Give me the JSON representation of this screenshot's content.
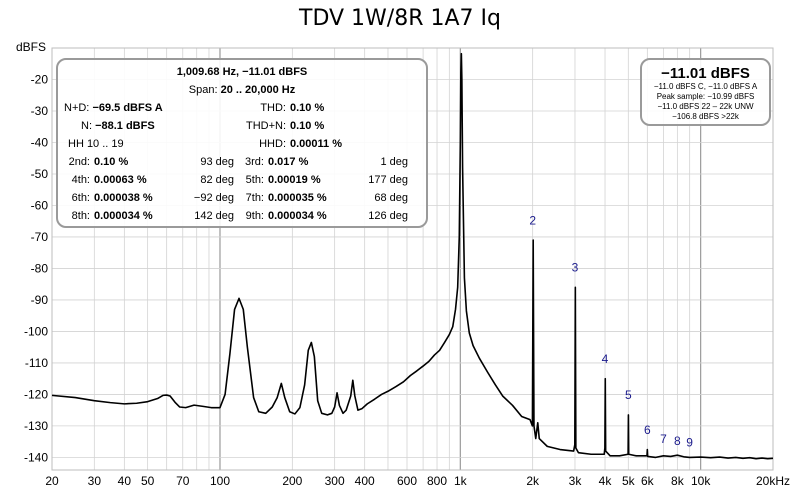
{
  "chart_data": {
    "type": "line",
    "title": "TDV 1W/8R 1A7 Iq",
    "ylabel": "dBFS",
    "xlabel": "",
    "x_scale": "log",
    "xlim": [
      20,
      20000
    ],
    "ylim": [
      -144,
      -10
    ],
    "grid": true,
    "y_ticks": [
      -20,
      -30,
      -40,
      -50,
      -60,
      -70,
      -80,
      -90,
      -100,
      -110,
      -120,
      -130,
      -140
    ],
    "x_ticks": [
      {
        "v": 20,
        "label": "20"
      },
      {
        "v": 30,
        "label": "30"
      },
      {
        "v": 40,
        "label": "40"
      },
      {
        "v": 50,
        "label": "50"
      },
      {
        "v": 70,
        "label": "70"
      },
      {
        "v": 100,
        "label": "100"
      },
      {
        "v": 200,
        "label": "200"
      },
      {
        "v": 300,
        "label": "300"
      },
      {
        "v": 400,
        "label": "400"
      },
      {
        "v": 600,
        "label": "600"
      },
      {
        "v": 800,
        "label": "800"
      },
      {
        "v": 1000,
        "label": "1k"
      },
      {
        "v": 2000,
        "label": "2k"
      },
      {
        "v": 3000,
        "label": "3k"
      },
      {
        "v": 4000,
        "label": "4k"
      },
      {
        "v": 5000,
        "label": "5k"
      },
      {
        "v": 6000,
        "label": "6k"
      },
      {
        "v": 8000,
        "label": "8k"
      },
      {
        "v": 10000,
        "label": "10k"
      },
      {
        "v": 20000,
        "label": "20kHz"
      }
    ],
    "series": [
      {
        "points": [
          [
            20,
            -120.3
          ],
          [
            25,
            -121
          ],
          [
            30,
            -122
          ],
          [
            35,
            -122.6
          ],
          [
            40,
            -123
          ],
          [
            45,
            -122.8
          ],
          [
            50,
            -122.3
          ],
          [
            55,
            -121.3
          ],
          [
            58,
            -120.3
          ],
          [
            60,
            -120.2
          ],
          [
            62,
            -120.5
          ],
          [
            65,
            -122.5
          ],
          [
            68,
            -124
          ],
          [
            72,
            -124.2
          ],
          [
            78,
            -123.4
          ],
          [
            85,
            -123.8
          ],
          [
            92,
            -124.2
          ],
          [
            100,
            -124.2
          ],
          [
            105,
            -120
          ],
          [
            110,
            -107
          ],
          [
            115,
            -93
          ],
          [
            120,
            -89.5
          ],
          [
            125,
            -93
          ],
          [
            130,
            -105
          ],
          [
            138,
            -121
          ],
          [
            145,
            -125.5
          ],
          [
            155,
            -126
          ],
          [
            165,
            -124
          ],
          [
            173,
            -121
          ],
          [
            180,
            -116.5
          ],
          [
            186,
            -121
          ],
          [
            195,
            -125.5
          ],
          [
            205,
            -126.2
          ],
          [
            215,
            -124.2
          ],
          [
            225,
            -117
          ],
          [
            233,
            -106
          ],
          [
            240,
            -103.5
          ],
          [
            247,
            -108
          ],
          [
            255,
            -122
          ],
          [
            265,
            -126
          ],
          [
            280,
            -126.5
          ],
          [
            292,
            -126
          ],
          [
            300,
            -124
          ],
          [
            307,
            -119.5
          ],
          [
            314,
            -123.5
          ],
          [
            325,
            -126
          ],
          [
            335,
            -125
          ],
          [
            350,
            -120.5
          ],
          [
            357,
            -115.5
          ],
          [
            364,
            -120.5
          ],
          [
            375,
            -125
          ],
          [
            390,
            -124.5
          ],
          [
            410,
            -123
          ],
          [
            440,
            -121.5
          ],
          [
            470,
            -120
          ],
          [
            500,
            -119
          ],
          [
            540,
            -117.5
          ],
          [
            580,
            -116
          ],
          [
            620,
            -114
          ],
          [
            660,
            -112.5
          ],
          [
            700,
            -111
          ],
          [
            740,
            -109.5
          ],
          [
            780,
            -107.5
          ],
          [
            820,
            -106
          ],
          [
            860,
            -103.5
          ],
          [
            900,
            -101
          ],
          [
            930,
            -98.5
          ],
          [
            955,
            -93
          ],
          [
            975,
            -86
          ],
          [
            990,
            -70
          ],
          [
            1000,
            -40
          ],
          [
            1005,
            -18
          ],
          [
            1010,
            -11.8
          ],
          [
            1015,
            -20
          ],
          [
            1022,
            -48
          ],
          [
            1040,
            -83
          ],
          [
            1060,
            -93.5
          ],
          [
            1090,
            -100.5
          ],
          [
            1130,
            -104.5
          ],
          [
            1200,
            -108.5
          ],
          [
            1300,
            -113
          ],
          [
            1400,
            -117
          ],
          [
            1500,
            -120.5
          ],
          [
            1650,
            -123.5
          ],
          [
            1800,
            -127
          ],
          [
            1950,
            -128
          ],
          [
            1995,
            -130
          ],
          [
            2010,
            -71
          ],
          [
            2025,
            -130
          ],
          [
            2060,
            -134
          ],
          [
            2100,
            -129
          ],
          [
            2130,
            -134
          ],
          [
            2300,
            -136.5
          ],
          [
            2600,
            -137.5
          ],
          [
            2960,
            -138
          ],
          [
            2995,
            -136
          ],
          [
            3010,
            -86
          ],
          [
            3025,
            -137
          ],
          [
            3100,
            -138.5
          ],
          [
            3500,
            -139
          ],
          [
            3970,
            -139
          ],
          [
            3995,
            -137
          ],
          [
            4010,
            -115
          ],
          [
            4025,
            -138
          ],
          [
            4200,
            -139.5
          ],
          [
            4600,
            -139.5
          ],
          [
            4990,
            -139
          ],
          [
            5005,
            -126.5
          ],
          [
            5020,
            -139
          ],
          [
            5400,
            -139.5
          ],
          [
            5980,
            -139.5
          ],
          [
            6000,
            -137.5
          ],
          [
            6020,
            -139.7
          ],
          [
            6500,
            -140
          ],
          [
            7000,
            -139.5
          ],
          [
            7500,
            -139.7
          ],
          [
            8000,
            -139.3
          ],
          [
            8500,
            -139.8
          ],
          [
            9000,
            -140
          ],
          [
            10000,
            -139.9
          ],
          [
            11000,
            -140.1
          ],
          [
            12000,
            -139.9
          ],
          [
            13000,
            -140.2
          ],
          [
            14000,
            -140
          ],
          [
            15000,
            -140.3
          ],
          [
            16000,
            -140.1
          ],
          [
            17000,
            -140.4
          ],
          [
            18000,
            -140.2
          ],
          [
            19000,
            -140.4
          ],
          [
            20000,
            -140.3
          ]
        ]
      }
    ],
    "harmonic_labels": [
      {
        "label": "2",
        "x": 2000,
        "y": -66
      },
      {
        "label": "3",
        "x": 3000,
        "y": -81
      },
      {
        "label": "4",
        "x": 4000,
        "y": -110
      },
      {
        "label": "5",
        "x": 5000,
        "y": -121.5
      },
      {
        "label": "6",
        "x": 6000,
        "y": -132.5
      },
      {
        "label": "7",
        "x": 7000,
        "y": -135.5
      },
      {
        "label": "8",
        "x": 8000,
        "y": -136
      },
      {
        "label": "9",
        "x": 9000,
        "y": -136.5
      }
    ]
  },
  "stats_panel": {
    "line1": "1,009.68 Hz, −11.01 dBFS",
    "span_label": "Span:",
    "span_value": "20 .. 20,000 Hz",
    "nd_label": "N+D:",
    "nd_value": "−69.5 dBFS A",
    "thd_label": "THD:",
    "thd_value": "0.10 %",
    "n_label": "N:",
    "n_value": "−88.1 dBFS",
    "thdn_label": "THD+N:",
    "thdn_value": "0.10 %",
    "hh_label": "HH 10 .. 19",
    "hhd_label": "HHD:",
    "hhd_value": "0.00011 %",
    "harmonics": [
      {
        "label": "2nd:",
        "value": "0.10 %",
        "deg": "93 deg"
      },
      {
        "label": "3rd:",
        "value": "0.017 %",
        "deg": "1 deg"
      },
      {
        "label": "4th:",
        "value": "0.00063 %",
        "deg": "82 deg"
      },
      {
        "label": "5th:",
        "value": "0.00019 %",
        "deg": "177 deg"
      },
      {
        "label": "6th:",
        "value": "0.000038 %",
        "deg": "−92 deg"
      },
      {
        "label": "7th:",
        "value": "0.000035 %",
        "deg": "68 deg"
      },
      {
        "label": "8th:",
        "value": "0.000034 %",
        "deg": "142 deg"
      },
      {
        "label": "9th:",
        "value": "0.000034 %",
        "deg": "126 deg"
      }
    ]
  },
  "peak_panel": {
    "big": "−11.01 dBFS",
    "lines": [
      "−11.0 dBFS C, −11.0 dBFS A",
      "Peak sample: −10.99 dBFS",
      "−11.0 dBFS 22 – 22k UNW",
      "−106.8 dBFS >22k"
    ]
  },
  "colors": {
    "trace": "#000000",
    "grid": "#d3d3d3",
    "harmonic_label": "#1a1a8c",
    "panel_border": "#9a9a9a"
  }
}
